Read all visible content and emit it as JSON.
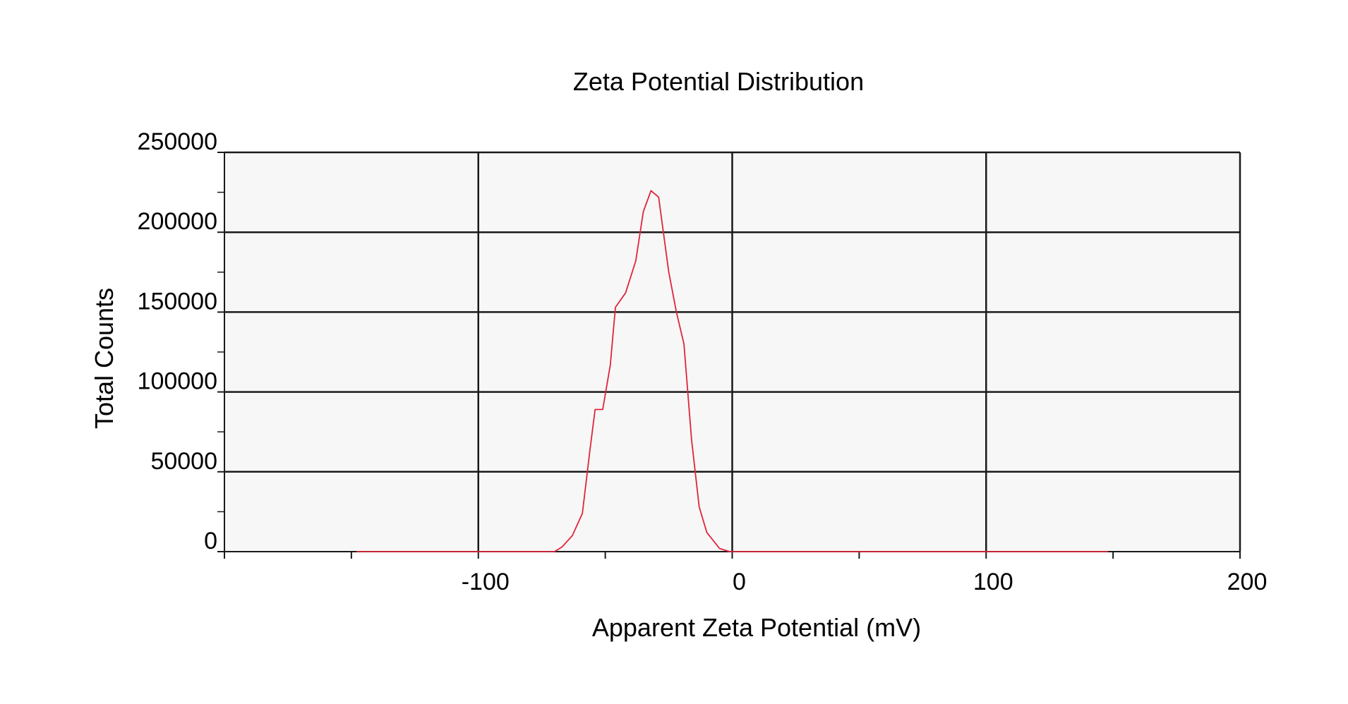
{
  "colors": {
    "background": "#ffffff",
    "plot_background": "#f7f7f7",
    "gridline": "#1a1a1a",
    "axis": "#1a1a1a",
    "series_line": "#e0243a"
  },
  "chart_data": {
    "type": "line",
    "title": "Zeta Potential Distribution",
    "xlabel": "Apparent Zeta Potential (mV)",
    "ylabel": "Total Counts",
    "xlim": [
      -200,
      200
    ],
    "ylim": [
      0,
      250000
    ],
    "xticks": [
      -100,
      0,
      100,
      200
    ],
    "xtick_labels": [
      "-100",
      "0",
      "100",
      "200"
    ],
    "xminor_ticks": [
      -200,
      -150,
      -50,
      50,
      150
    ],
    "yticks": [
      0,
      50000,
      100000,
      150000,
      200000,
      250000
    ],
    "ytick_labels": [
      "0",
      "50000",
      "100000",
      "150000",
      "200000",
      "250000"
    ],
    "yminor_ticks": [
      25000,
      75000,
      125000,
      175000,
      225000
    ],
    "grid": true,
    "legend": "none",
    "series": [
      {
        "color": "#e0243a",
        "x": [
          -148,
          -70,
          -67,
          -63,
          -59,
          -56,
          -54,
          -51,
          -48,
          -46,
          -42,
          -38,
          -35,
          -32,
          -29,
          -25,
          -22,
          -19,
          -16,
          -13,
          -10,
          -5,
          -1,
          20,
          60,
          100,
          148
        ],
        "y": [
          0,
          0,
          3000,
          10000,
          24000,
          64000,
          89000,
          89000,
          117000,
          153000,
          162000,
          182000,
          213000,
          226000,
          222000,
          175000,
          150000,
          130000,
          70000,
          28000,
          12000,
          2000,
          0,
          0,
          0,
          0,
          0
        ]
      }
    ]
  }
}
